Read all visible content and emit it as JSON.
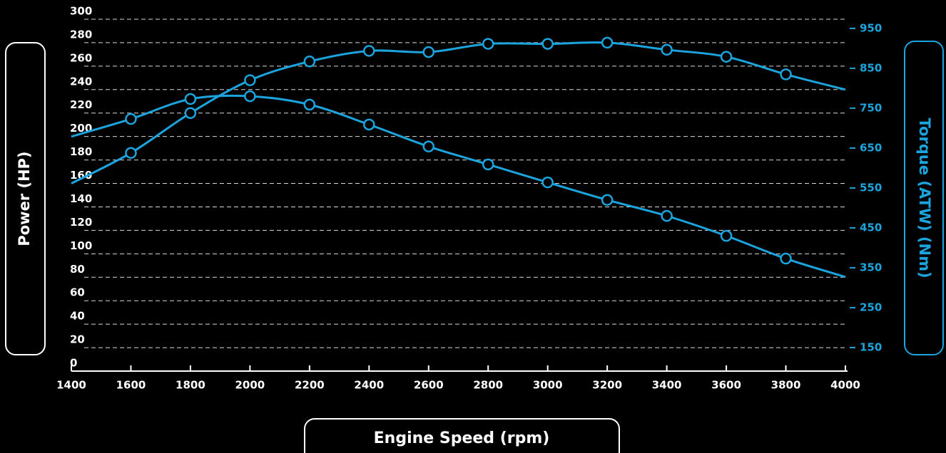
{
  "chart_data": {
    "type": "line",
    "x": [
      1400,
      1600,
      1800,
      2000,
      2200,
      2400,
      2600,
      2800,
      3000,
      3200,
      3400,
      3600,
      3800,
      4000
    ],
    "series": [
      {
        "name": "Power (HP)",
        "color": "#1ba4dd",
        "values": [
          160,
          186,
          220,
          248,
          264,
          273,
          272,
          279,
          279,
          280,
          274,
          268,
          253,
          240
        ]
      },
      {
        "name": "Torque (ATW) (Nm)",
        "color": "#1ba4dd",
        "axis": "y2",
        "values": [
          679,
          723,
          773,
          780,
          759,
          709,
          654,
          609,
          564,
          520,
          480,
          430,
          373,
          327
        ]
      }
    ],
    "xlabel": "Engine Speed (rpm)",
    "ylabel": "Power (HP)",
    "y2label": "Torque (ATW) (Nm)",
    "xlim": [
      1400,
      4000
    ],
    "xticks": [
      1400,
      1600,
      1800,
      2000,
      2200,
      2400,
      2600,
      2800,
      3000,
      3200,
      3400,
      3600,
      3800,
      4000
    ],
    "ylim": [
      0,
      300
    ],
    "yticks": [
      0,
      20,
      40,
      60,
      80,
      100,
      120,
      140,
      160,
      180,
      200,
      220,
      240,
      260,
      280,
      300
    ],
    "y2lim": [
      91,
      973
    ],
    "y2ticks": [
      150,
      250,
      350,
      450,
      550,
      650,
      750,
      850,
      950
    ],
    "grid": true
  }
}
